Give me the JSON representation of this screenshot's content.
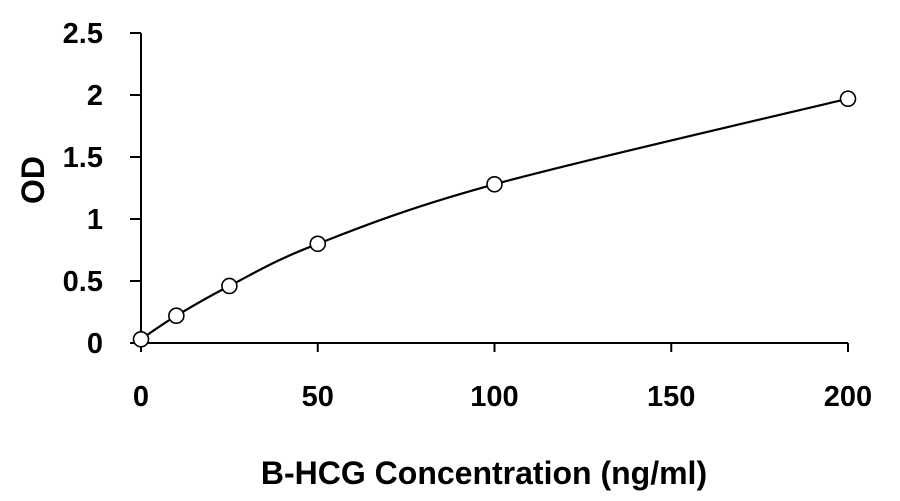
{
  "chart_data": {
    "type": "scatter",
    "title": "",
    "xlabel": "B-HCG Concentration (ng/ml)",
    "ylabel": "OD",
    "xlim": [
      0,
      200
    ],
    "ylim": [
      0,
      2.5
    ],
    "xticks": [
      0,
      50,
      100,
      150,
      200
    ],
    "xtick_labels": [
      "0",
      "50",
      "100",
      "150",
      "200"
    ],
    "yticks": [
      0,
      0.5,
      1,
      1.5,
      2,
      2.5
    ],
    "ytick_labels": [
      "0",
      "0.5",
      "1",
      "1.5",
      "2",
      "2.5"
    ],
    "grid": false,
    "legend": "none",
    "series": [
      {
        "x": [
          0,
          10,
          25,
          50,
          100,
          200
        ],
        "y": [
          0.03,
          0.22,
          0.46,
          0.8,
          1.28,
          1.97
        ],
        "connected": true,
        "smooth": true,
        "marker": "open-circle",
        "color": "#000000"
      }
    ]
  }
}
